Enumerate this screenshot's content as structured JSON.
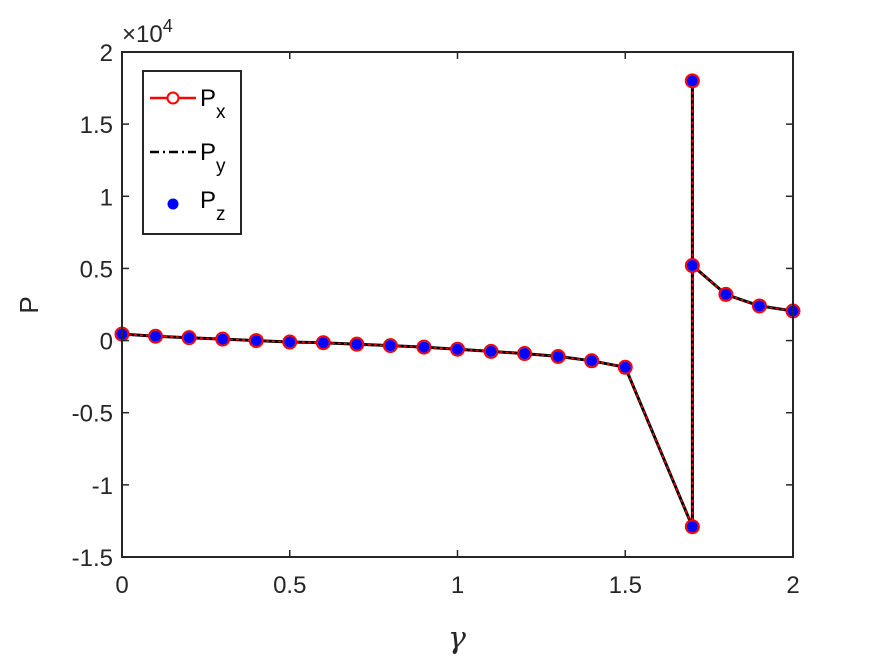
{
  "chart_data": {
    "type": "line",
    "xlabel": "γ",
    "ylabel": "P",
    "xlim": [
      0,
      2
    ],
    "ylim": [
      -15000,
      20000
    ],
    "y_multiplier_label": "×10",
    "y_multiplier_exponent": "4",
    "xticks": [
      0,
      0.5,
      1,
      1.5,
      2
    ],
    "xtick_labels": [
      "0",
      "0.5",
      "1",
      "1.5",
      "2"
    ],
    "yticks": [
      -15000,
      -10000,
      -5000,
      0,
      5000,
      10000,
      15000,
      20000
    ],
    "ytick_labels": [
      "-1.5",
      "-1",
      "-0.5",
      "0",
      "0.5",
      "1",
      "1.5",
      "2"
    ],
    "grid": false,
    "legend_position": "top-left",
    "x": [
      0,
      0.1,
      0.2,
      0.3,
      0.4,
      0.5,
      0.6,
      0.7,
      0.8,
      0.9,
      1.0,
      1.1,
      1.2,
      1.3,
      1.4,
      1.5,
      1.7,
      1.7,
      1.7,
      1.8,
      1.9,
      2.0
    ],
    "series": [
      {
        "name": "P",
        "subscript": "x",
        "style": "solid-circle-open",
        "color": "#ff0000",
        "values": [
          450,
          300,
          200,
          100,
          0,
          -100,
          -150,
          -250,
          -350,
          -450,
          -600,
          -750,
          -900,
          -1100,
          -1400,
          -1850,
          -12900,
          18000,
          5200,
          3200,
          2400,
          2050
        ]
      },
      {
        "name": "P",
        "subscript": "y",
        "style": "dashdot",
        "color": "#000000",
        "values": [
          450,
          300,
          200,
          100,
          0,
          -100,
          -150,
          -250,
          -350,
          -450,
          -600,
          -750,
          -900,
          -1100,
          -1400,
          -1850,
          -12900,
          18000,
          5200,
          3200,
          2400,
          2050
        ]
      },
      {
        "name": "P",
        "subscript": "z",
        "style": "marker-filled-dot",
        "color": "#0000ff",
        "values": [
          450,
          300,
          200,
          100,
          0,
          -100,
          -150,
          -250,
          -350,
          -450,
          -600,
          -750,
          -900,
          -1100,
          -1400,
          -1850,
          -12900,
          18000,
          5200,
          3200,
          2400,
          2050
        ]
      }
    ]
  }
}
